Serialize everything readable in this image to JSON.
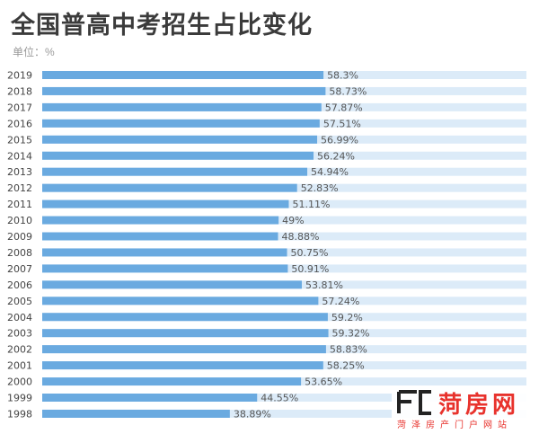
{
  "title": "全国普高中考招生占比变化",
  "unit_label": "单位：%",
  "colors": {
    "bar": "#6aaae0",
    "track": "#dcebf8",
    "brand_red": "#e8322c"
  },
  "watermark": {
    "logo_icon": "fc-logo-icon",
    "main": "菏房网",
    "sub": "菏泽房产门户网站"
  },
  "chart_data": {
    "type": "bar",
    "orientation": "horizontal",
    "title": "全国普高中考招生占比变化",
    "xlabel": "",
    "ylabel": "",
    "unit": "%",
    "xlim": [
      0,
      100
    ],
    "grid": false,
    "categories": [
      "2019",
      "2018",
      "2017",
      "2016",
      "2015",
      "2014",
      "2013",
      "2012",
      "2011",
      "2010",
      "2009",
      "2008",
      "2007",
      "2006",
      "2005",
      "2004",
      "2003",
      "2002",
      "2001",
      "2000",
      "1999",
      "1998"
    ],
    "values": [
      58.3,
      58.73,
      57.87,
      57.51,
      56.99,
      56.24,
      54.94,
      52.83,
      51.11,
      49,
      48.88,
      50.75,
      50.91,
      53.81,
      57.24,
      59.2,
      59.32,
      58.83,
      58.25,
      53.65,
      44.55,
      38.89
    ],
    "value_labels": [
      "58.3%",
      "58.73%",
      "57.87%",
      "57.51%",
      "56.99%",
      "56.24%",
      "54.94%",
      "52.83%",
      "51.11%",
      "49%",
      "48.88%",
      "50.75%",
      "50.91%",
      "53.81%",
      "57.24%",
      "59.2%",
      "59.32%",
      "58.83%",
      "58.25%",
      "53.65%",
      "44.55%",
      "38.89%"
    ]
  }
}
